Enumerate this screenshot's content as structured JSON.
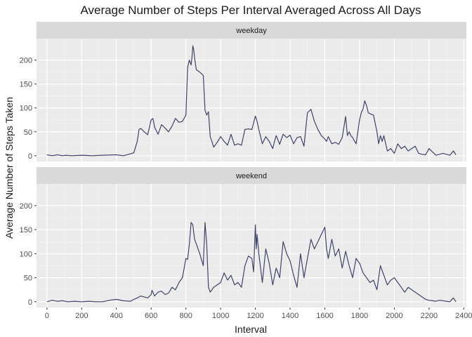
{
  "chart_data": {
    "type": "line",
    "title": "Average Number of Steps Per Interval Averaged Across All Days",
    "xlabel": "Interval",
    "ylabel": "Average Number of Steps Taken",
    "xlim": [
      -60,
      2415
    ],
    "ylim": [
      -12,
      245
    ],
    "xticks": [
      0,
      200,
      400,
      600,
      800,
      1000,
      1200,
      1400,
      1600,
      1800,
      2000,
      2200,
      2400
    ],
    "yticks": [
      0,
      50,
      100,
      150,
      200
    ],
    "grid": true,
    "line_color": "#3f4468",
    "panels": [
      {
        "label": "weekday",
        "x": [
          0,
          30,
          60,
          90,
          110,
          140,
          200,
          260,
          320,
          400,
          440,
          470,
          500,
          520,
          530,
          540,
          550,
          560,
          580,
          600,
          610,
          620,
          630,
          640,
          660,
          680,
          700,
          720,
          740,
          760,
          780,
          800,
          810,
          820,
          830,
          835,
          840,
          845,
          850,
          860,
          880,
          900,
          910,
          920,
          930,
          940,
          950,
          960,
          980,
          1000,
          1020,
          1040,
          1060,
          1080,
          1100,
          1120,
          1140,
          1160,
          1180,
          1200,
          1210,
          1220,
          1240,
          1260,
          1280,
          1300,
          1310,
          1320,
          1340,
          1360,
          1380,
          1400,
          1420,
          1440,
          1460,
          1480,
          1500,
          1520,
          1540,
          1560,
          1580,
          1600,
          1610,
          1620,
          1640,
          1660,
          1680,
          1700,
          1720,
          1730,
          1740,
          1750,
          1760,
          1780,
          1800,
          1810,
          1820,
          1830,
          1840,
          1850,
          1860,
          1880,
          1900,
          1910,
          1920,
          1930,
          1940,
          1960,
          1980,
          2000,
          2020,
          2040,
          2060,
          2080,
          2100,
          2120,
          2140,
          2160,
          2180,
          2200,
          2220,
          2240,
          2260,
          2280,
          2300,
          2320,
          2340,
          2355
        ],
        "y": [
          2,
          0,
          2,
          0,
          1,
          0,
          1,
          0,
          1,
          2,
          0,
          3,
          6,
          30,
          55,
          57,
          54,
          50,
          44,
          75,
          78,
          60,
          52,
          45,
          65,
          58,
          50,
          62,
          78,
          70,
          72,
          85,
          185,
          200,
          190,
          205,
          230,
          222,
          205,
          180,
          175,
          168,
          95,
          85,
          92,
          40,
          30,
          18,
          28,
          40,
          30,
          22,
          45,
          22,
          25,
          22,
          55,
          56,
          55,
          83,
          72,
          55,
          25,
          40,
          30,
          15,
          30,
          42,
          24,
          45,
          38,
          43,
          25,
          38,
          40,
          20,
          90,
          97,
          72,
          55,
          42,
          35,
          30,
          40,
          25,
          28,
          24,
          38,
          82,
          42,
          50,
          42,
          38,
          25,
          75,
          90,
          98,
          115,
          105,
          90,
          88,
          85,
          50,
          25,
          42,
          30,
          42,
          10,
          15,
          5,
          25,
          15,
          20,
          10,
          15,
          20,
          5,
          3,
          2,
          15,
          8,
          1,
          3,
          5,
          3,
          1,
          10,
          2
        ],
        "y_tick_labels": [
          "0",
          "50",
          "100",
          "150",
          "200"
        ]
      },
      {
        "label": "weekend",
        "x": [
          0,
          30,
          60,
          90,
          120,
          160,
          200,
          240,
          280,
          320,
          360,
          400,
          440,
          480,
          500,
          520,
          540,
          560,
          580,
          600,
          605,
          620,
          640,
          660,
          680,
          700,
          720,
          740,
          760,
          780,
          790,
          800,
          810,
          820,
          830,
          840,
          850,
          860,
          880,
          900,
          910,
          920,
          930,
          940,
          960,
          980,
          1000,
          1020,
          1040,
          1060,
          1080,
          1100,
          1120,
          1140,
          1160,
          1180,
          1190,
          1200,
          1205,
          1210,
          1220,
          1240,
          1260,
          1280,
          1300,
          1320,
          1340,
          1360,
          1380,
          1400,
          1420,
          1440,
          1460,
          1480,
          1500,
          1520,
          1540,
          1560,
          1580,
          1600,
          1610,
          1620,
          1640,
          1660,
          1680,
          1700,
          1720,
          1740,
          1760,
          1780,
          1800,
          1820,
          1840,
          1860,
          1880,
          1900,
          1920,
          1940,
          1960,
          1980,
          2000,
          2020,
          2040,
          2060,
          2080,
          2100,
          2120,
          2140,
          2160,
          2180,
          2200,
          2220,
          2240,
          2260,
          2280,
          2300,
          2320,
          2340,
          2355
        ],
        "y": [
          0,
          3,
          1,
          2,
          0,
          1,
          0,
          1,
          0,
          0,
          3,
          5,
          2,
          1,
          5,
          8,
          12,
          10,
          8,
          15,
          24,
          12,
          20,
          22,
          15,
          18,
          30,
          25,
          40,
          50,
          70,
          90,
          88,
          120,
          165,
          160,
          130,
          120,
          100,
          75,
          165,
          120,
          30,
          20,
          30,
          35,
          40,
          60,
          45,
          55,
          35,
          40,
          30,
          75,
          95,
          90,
          62,
          160,
          110,
          140,
          100,
          40,
          110,
          80,
          35,
          70,
          50,
          125,
          100,
          85,
          55,
          30,
          100,
          50,
          90,
          130,
          110,
          125,
          140,
          155,
          110,
          90,
          130,
          95,
          110,
          70,
          105,
          75,
          50,
          90,
          80,
          60,
          50,
          40,
          45,
          25,
          75,
          55,
          35,
          45,
          50,
          40,
          30,
          20,
          30,
          25,
          20,
          15,
          10,
          5,
          3,
          2,
          1,
          3,
          2,
          1,
          0,
          8,
          0
        ],
        "y_tick_labels": [
          "0",
          "50",
          "100",
          "150",
          "200"
        ]
      }
    ],
    "x_tick_labels": [
      "0",
      "200",
      "400",
      "600",
      "800",
      "1000",
      "1200",
      "1400",
      "1600",
      "1800",
      "2000",
      "2200",
      "2400"
    ]
  }
}
